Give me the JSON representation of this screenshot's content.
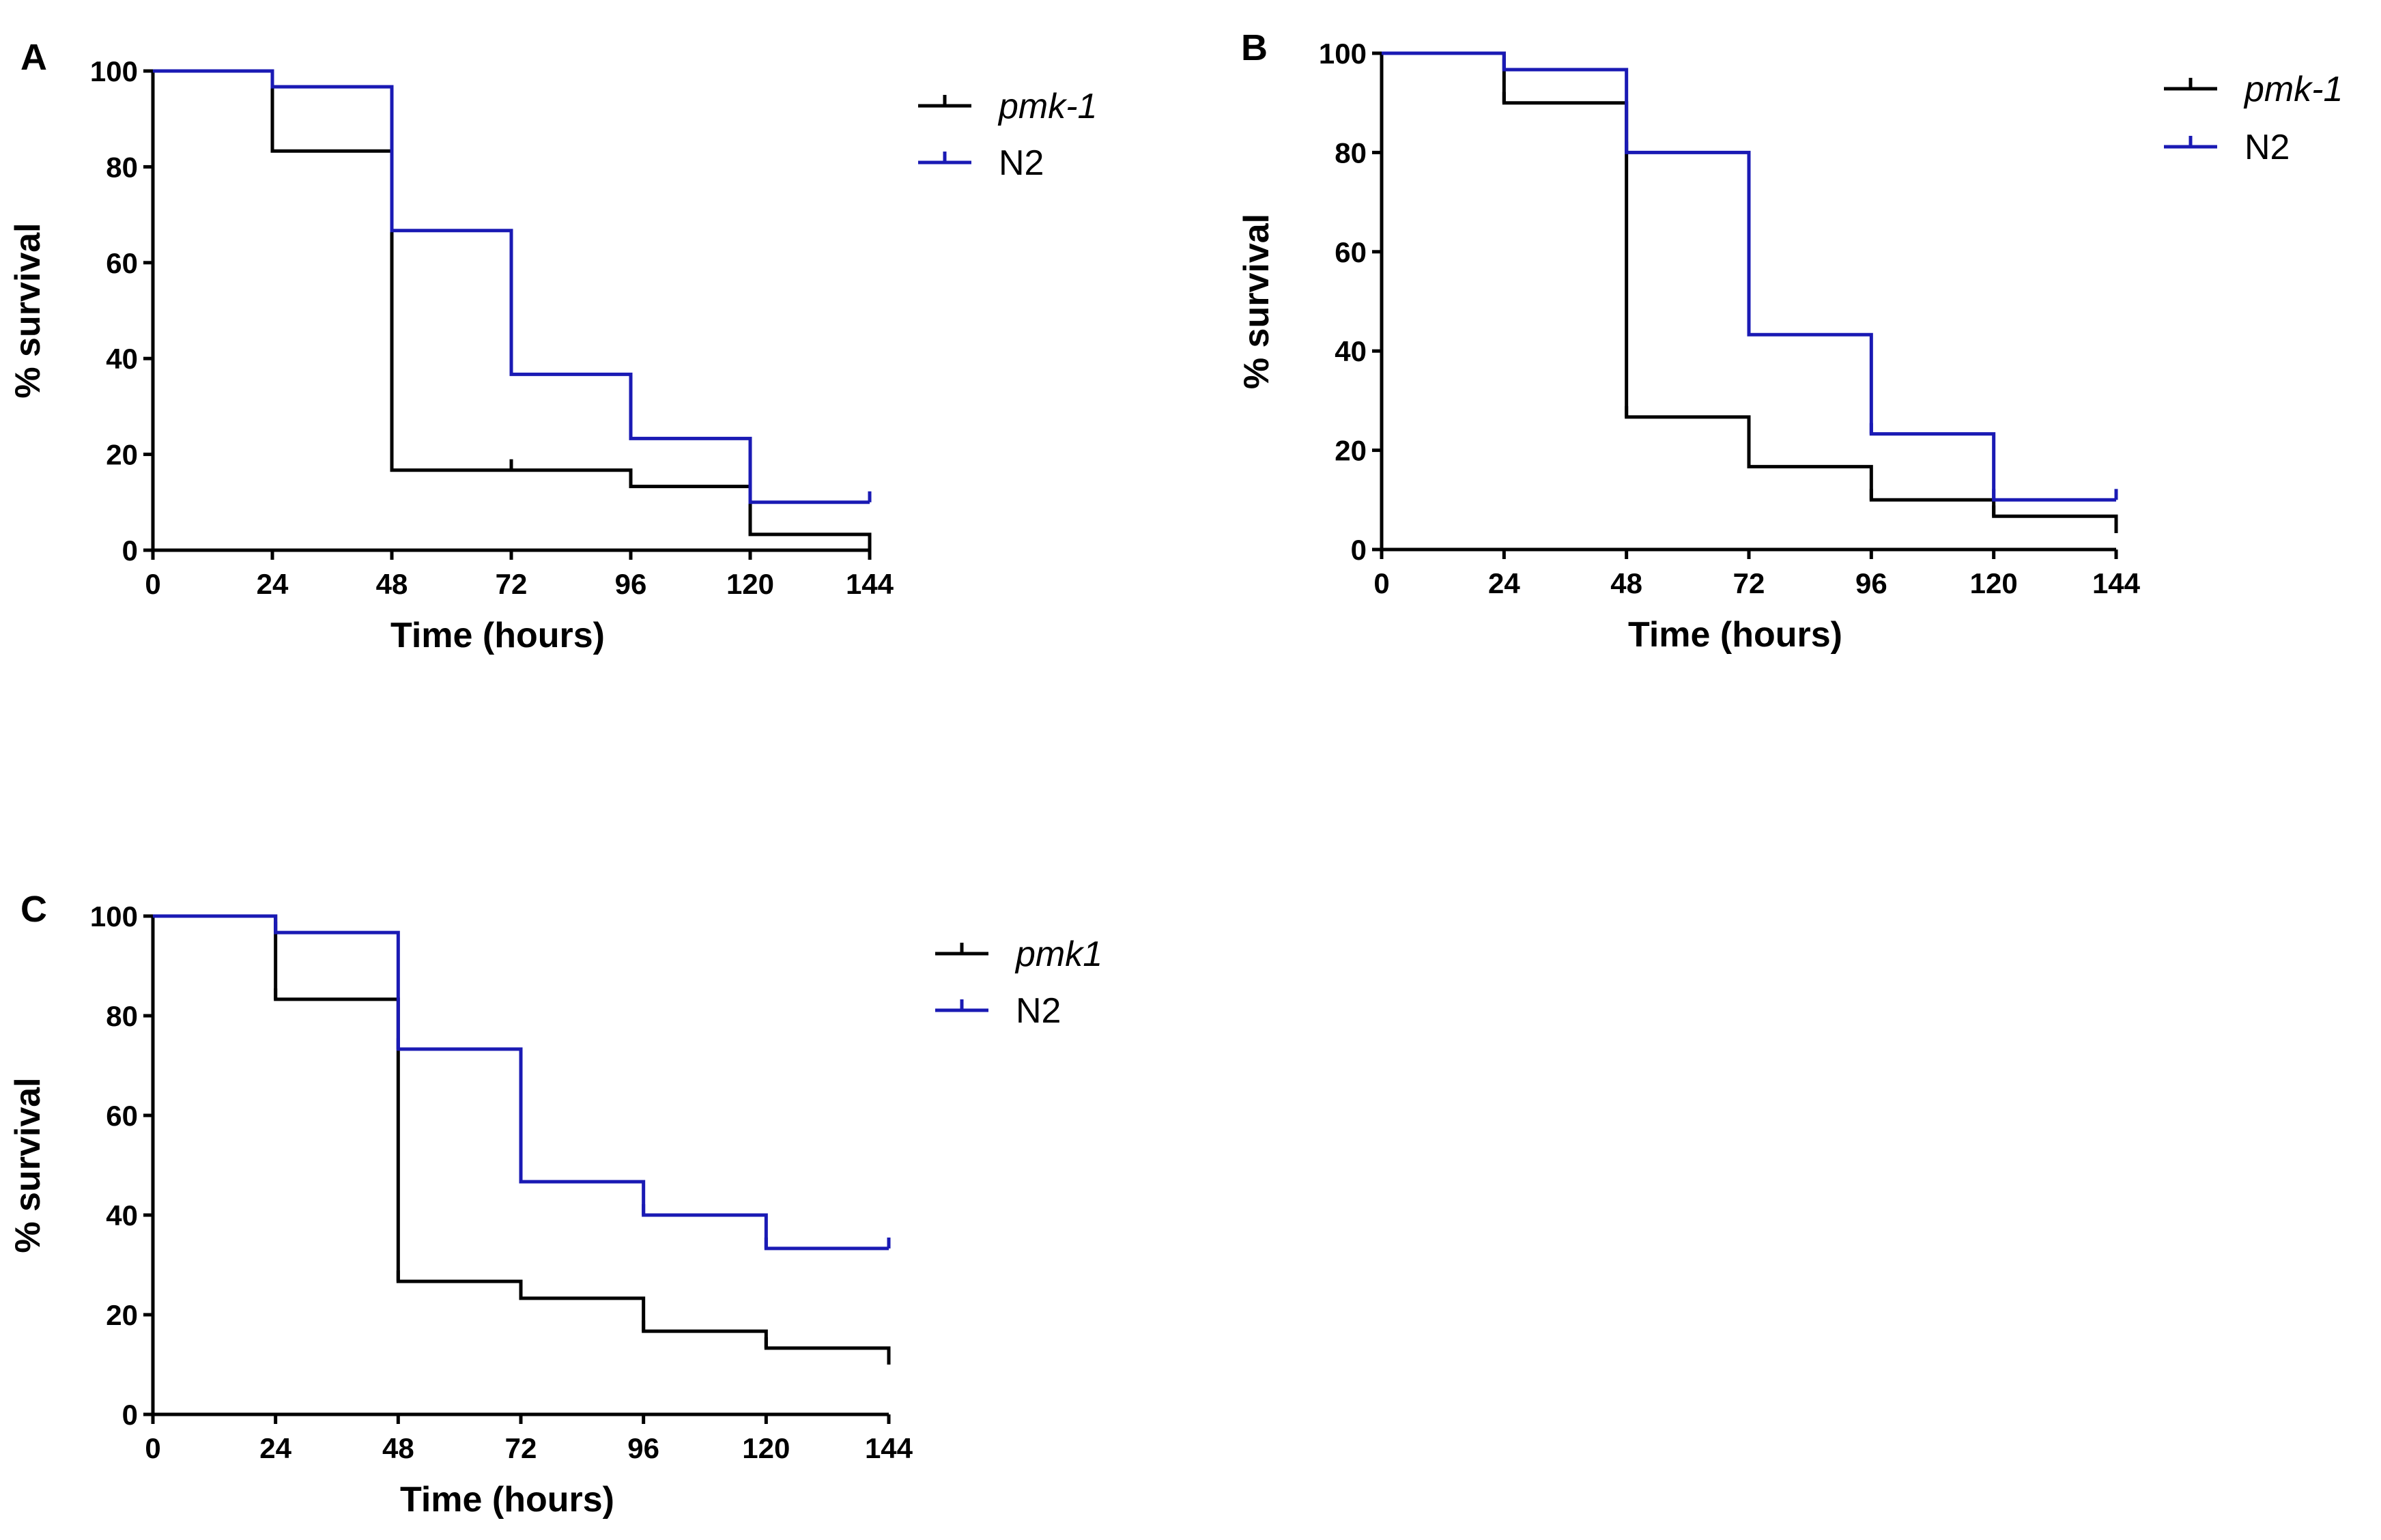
{
  "figure_panels": [
    "A",
    "B",
    "C"
  ],
  "colors": {
    "pmk1": "#000000",
    "n2": "#1a1ab4"
  },
  "chart_data": [
    {
      "panel": "A",
      "type": "line",
      "step": true,
      "xlabel": "Time (hours)",
      "ylabel": "% survival",
      "xlim": [
        0,
        144
      ],
      "ylim": [
        0,
        100
      ],
      "xticks": [
        0,
        24,
        48,
        72,
        96,
        120,
        144
      ],
      "yticks": [
        0,
        20,
        40,
        60,
        80,
        100
      ],
      "xtick_labels": [
        "0",
        "24",
        "48",
        "72",
        "96",
        "120",
        "144"
      ],
      "ytick_labels": [
        "0",
        "20",
        "40",
        "60",
        "80",
        "100"
      ],
      "legend_position": "top-right",
      "series": [
        {
          "name": "pmk-1",
          "italic": true,
          "color": "#000000",
          "x": [
            0,
            24,
            48,
            72,
            96,
            120,
            144
          ],
          "y": [
            100,
            83.3,
            16.7,
            16.7,
            13.3,
            3.3,
            0
          ]
        },
        {
          "name": "N2",
          "italic": false,
          "color": "#1a1ab4",
          "x": [
            0,
            24,
            48,
            72,
            96,
            120,
            144
          ],
          "y": [
            100,
            96.7,
            66.7,
            36.7,
            23.3,
            10,
            10
          ]
        }
      ]
    },
    {
      "panel": "B",
      "type": "line",
      "step": true,
      "xlabel": "Time (hours)",
      "ylabel": "% survival",
      "xlim": [
        0,
        144
      ],
      "ylim": [
        0,
        100
      ],
      "xticks": [
        0,
        24,
        48,
        72,
        96,
        120,
        144
      ],
      "yticks": [
        0,
        20,
        40,
        60,
        80,
        100
      ],
      "xtick_labels": [
        "0",
        "24",
        "48",
        "72",
        "96",
        "120",
        "144"
      ],
      "ytick_labels": [
        "0",
        "20",
        "40",
        "60",
        "80",
        "100"
      ],
      "legend_position": "top-right",
      "series": [
        {
          "name": "pmk-1",
          "italic": true,
          "color": "#000000",
          "x": [
            0,
            24,
            48,
            72,
            96,
            120,
            144
          ],
          "y": [
            100,
            90,
            26.7,
            16.7,
            10,
            6.7,
            3.3
          ]
        },
        {
          "name": "N2",
          "italic": false,
          "color": "#1a1ab4",
          "x": [
            0,
            24,
            48,
            72,
            96,
            120,
            144
          ],
          "y": [
            100,
            96.7,
            80,
            43.3,
            23.3,
            10,
            10
          ]
        }
      ]
    },
    {
      "panel": "C",
      "type": "line",
      "step": true,
      "xlabel": "Time (hours)",
      "ylabel": "% survival",
      "xlim": [
        0,
        144
      ],
      "ylim": [
        0,
        100
      ],
      "xticks": [
        0,
        24,
        48,
        72,
        96,
        120,
        144
      ],
      "yticks": [
        0,
        20,
        40,
        60,
        80,
        100
      ],
      "xtick_labels": [
        "0",
        "24",
        "48",
        "72",
        "96",
        "120",
        "144"
      ],
      "ytick_labels": [
        "0",
        "20",
        "40",
        "60",
        "80",
        "100"
      ],
      "legend_position": "top-right",
      "series": [
        {
          "name": "pmk1",
          "italic": true,
          "color": "#000000",
          "x": [
            0,
            24,
            48,
            72,
            96,
            120,
            144
          ],
          "y": [
            100,
            83.3,
            26.7,
            23.3,
            16.7,
            13.3,
            10
          ]
        },
        {
          "name": "N2",
          "italic": false,
          "color": "#1a1ab4",
          "x": [
            0,
            24,
            48,
            72,
            96,
            120,
            144
          ],
          "y": [
            100,
            96.7,
            73.3,
            46.7,
            40,
            33.3,
            33.3
          ]
        }
      ]
    }
  ]
}
